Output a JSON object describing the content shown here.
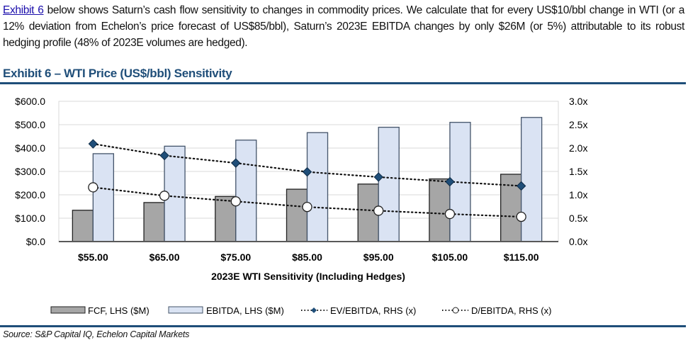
{
  "paragraph": {
    "link": "Exhibit 6",
    "text": " below shows Saturn’s cash flow sensitivity to changes in commodity prices. We calculate that for every US$10/bbl change in WTI (or a 12% deviation from Echelon’s price forecast of US$85/bbl), Saturn’s 2023E EBITDA changes by only $26M (or 5%) attributable to its robust hedging profile (48% of 2023E volumes are hedged)."
  },
  "exhibit_title": "Exhibit 6 – WTI Price (US$/bbl) Sensitivity",
  "source": "Source: S&P Capital IQ, Echelon Capital Markets",
  "colors": {
    "fcf": "#a6a6a6",
    "ebitda": "#dae3f3",
    "ebitda_border": "#44546a",
    "marker": "#1f4e79",
    "rule": "#1f4e79"
  },
  "chart_data": {
    "type": "bar",
    "title": "Exhibit 6 – WTI Price (US$/bbl) Sensitivity",
    "xlabel": "2023E WTI Sensitivity (Including Hedges)",
    "ylabel": "",
    "categories": [
      "$55.00",
      "$65.00",
      "$75.00",
      "$85.00",
      "$95.00",
      "$105.00",
      "$115.00"
    ],
    "ylim": [
      0,
      600
    ],
    "y2lim": [
      0,
      3.0
    ],
    "yticks": [
      "$0.0",
      "$100.0",
      "$200.0",
      "$300.0",
      "$400.0",
      "$500.0",
      "$600.0"
    ],
    "y2ticks": [
      "0.0x",
      "0.5x",
      "1.0x",
      "1.5x",
      "2.0x",
      "2.5x",
      "3.0x"
    ],
    "grid": true,
    "legend_position": "bottom",
    "series": [
      {
        "name": "FCF, LHS ($M)",
        "kind": "bar",
        "axis": "left",
        "values": [
          134,
          167,
          193,
          224,
          246,
          268,
          288
        ]
      },
      {
        "name": "EBITDA, LHS ($M)",
        "kind": "bar",
        "axis": "left",
        "values": [
          376,
          408,
          434,
          466,
          489,
          510,
          531
        ]
      },
      {
        "name": "EV/EBITDA, RHS (x)",
        "kind": "line",
        "axis": "right",
        "marker": "diamond",
        "values": [
          2.09,
          1.84,
          1.68,
          1.49,
          1.38,
          1.28,
          1.19
        ]
      },
      {
        "name": "D/EBITDA, RHS (x)",
        "kind": "line",
        "axis": "right",
        "marker": "circle",
        "values": [
          1.16,
          0.98,
          0.86,
          0.74,
          0.66,
          0.59,
          0.53
        ]
      }
    ]
  }
}
